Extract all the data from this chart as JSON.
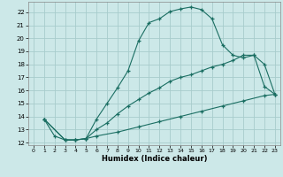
{
  "xlabel": "Humidex (Indice chaleur)",
  "bg_color": "#cce8e8",
  "grid_color": "#a8cccc",
  "line_color": "#1a6e62",
  "xlim": [
    -0.5,
    23.5
  ],
  "ylim": [
    11.8,
    22.8
  ],
  "xticks": [
    0,
    1,
    2,
    3,
    4,
    5,
    6,
    7,
    8,
    9,
    10,
    11,
    12,
    13,
    14,
    15,
    16,
    17,
    18,
    19,
    20,
    21,
    22,
    23
  ],
  "yticks": [
    12,
    13,
    14,
    15,
    16,
    17,
    18,
    19,
    20,
    21,
    22
  ],
  "line1_x": [
    1,
    2,
    3,
    4,
    5,
    6,
    7,
    8,
    9,
    10,
    11,
    12,
    13,
    14,
    15,
    16,
    17,
    18,
    19,
    20,
    21,
    22,
    23
  ],
  "line1_y": [
    13.8,
    12.5,
    12.2,
    12.2,
    12.3,
    13.8,
    15.0,
    16.2,
    17.5,
    19.8,
    21.2,
    21.5,
    22.05,
    22.25,
    22.4,
    22.2,
    21.5,
    19.5,
    18.7,
    18.5,
    18.7,
    16.3,
    15.7
  ],
  "line2_x": [
    1,
    3,
    4,
    5,
    6,
    7,
    8,
    9,
    10,
    11,
    12,
    13,
    14,
    15,
    16,
    17,
    18,
    19,
    20,
    21,
    22,
    23
  ],
  "line2_y": [
    13.8,
    12.2,
    12.2,
    12.3,
    13.0,
    13.5,
    14.2,
    14.8,
    15.3,
    15.8,
    16.2,
    16.7,
    17.0,
    17.2,
    17.5,
    17.8,
    18.0,
    18.3,
    18.7,
    18.7,
    18.0,
    15.7
  ],
  "line3_x": [
    1,
    3,
    4,
    5,
    6,
    8,
    10,
    12,
    14,
    16,
    18,
    20,
    22,
    23
  ],
  "line3_y": [
    13.8,
    12.2,
    12.2,
    12.3,
    12.5,
    12.8,
    13.2,
    13.6,
    14.0,
    14.4,
    14.8,
    15.2,
    15.6,
    15.7
  ]
}
